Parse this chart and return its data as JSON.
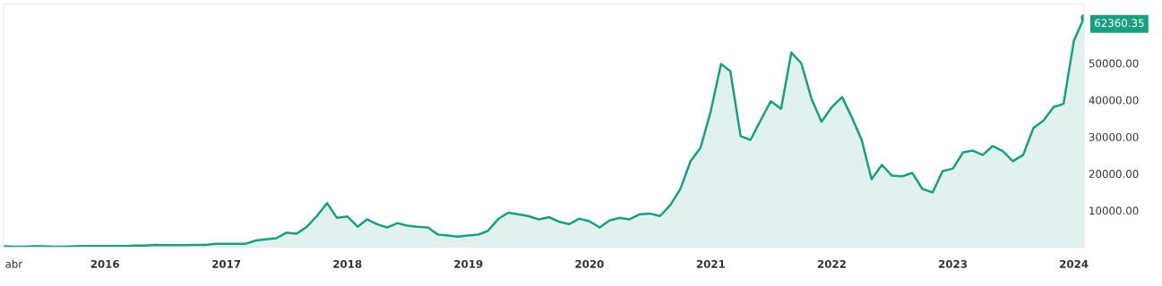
{
  "chart_data": {
    "type": "area",
    "color": "#1a9e7f",
    "x": [
      "2015-03",
      "2015-04",
      "2015-05",
      "2015-06",
      "2015-07",
      "2015-08",
      "2015-09",
      "2015-10",
      "2015-11",
      "2015-12",
      "2016-01",
      "2016-02",
      "2016-03",
      "2016-04",
      "2016-05",
      "2016-06",
      "2016-07",
      "2016-08",
      "2016-09",
      "2016-10",
      "2016-11",
      "2016-12",
      "2017-01",
      "2017-02",
      "2017-03",
      "2017-04",
      "2017-05",
      "2017-06",
      "2017-07",
      "2017-08",
      "2017-09",
      "2017-10",
      "2017-11",
      "2017-12",
      "2018-01",
      "2018-02",
      "2018-03",
      "2018-04",
      "2018-05",
      "2018-06",
      "2018-07",
      "2018-08",
      "2018-09",
      "2018-10",
      "2018-11",
      "2018-12",
      "2019-01",
      "2019-02",
      "2019-03",
      "2019-04",
      "2019-05",
      "2019-06",
      "2019-07",
      "2019-08",
      "2019-09",
      "2019-10",
      "2019-11",
      "2019-12",
      "2020-01",
      "2020-02",
      "2020-03",
      "2020-04",
      "2020-05",
      "2020-06",
      "2020-07",
      "2020-08",
      "2020-09",
      "2020-10",
      "2020-11",
      "2020-12",
      "2021-01",
      "2021-02",
      "2021-03",
      "2021-04",
      "2021-05",
      "2021-06",
      "2021-07",
      "2021-08",
      "2021-09",
      "2021-10",
      "2021-11",
      "2021-12",
      "2022-01",
      "2022-02",
      "2022-03",
      "2022-04",
      "2022-05",
      "2022-06",
      "2022-07",
      "2022-08",
      "2022-09",
      "2022-10",
      "2022-11",
      "2022-12",
      "2023-01",
      "2023-02",
      "2023-03",
      "2023-04",
      "2023-05",
      "2023-06",
      "2023-07",
      "2023-08",
      "2023-09",
      "2023-10",
      "2023-11",
      "2023-12",
      "2024-01",
      "2024-02"
    ],
    "values": [
      300,
      200,
      200,
      300,
      300,
      200,
      200,
      300,
      400,
      400,
      400,
      400,
      400,
      500,
      500,
      700,
      600,
      600,
      600,
      700,
      700,
      1000,
      1000,
      1000,
      1000,
      1900,
      2200,
      2500,
      4000,
      3700,
      5600,
      8500,
      12000,
      8000,
      8400,
      5600,
      7600,
      6300,
      5400,
      6600,
      5900,
      5600,
      5400,
      3500,
      3200,
      2900,
      3200,
      3500,
      4500,
      7700,
      9400,
      9000,
      8500,
      7600,
      8200,
      7000,
      6300,
      7800,
      7100,
      5400,
      7300,
      8000,
      7600,
      9000,
      9200,
      8500,
      11500,
      15800,
      23400,
      27000,
      37000,
      49800,
      47800,
      30200,
      29200,
      34600,
      39700,
      37600,
      52900,
      50000,
      40300,
      34100,
      38100,
      40800,
      35600,
      29200,
      18500,
      22400,
      19500,
      19300,
      20200,
      15900,
      14900,
      20700,
      21400,
      25800,
      26300,
      25100,
      27500,
      26100,
      23400,
      25100,
      32400,
      34400,
      38100,
      39000,
      56100,
      62360.35
    ],
    "value_labels": [
      null,
      null,
      null,
      null,
      null,
      null,
      null,
      null,
      null,
      null,
      null,
      null,
      null,
      null,
      null,
      null,
      null,
      null,
      null,
      null,
      null,
      null,
      null,
      null,
      null,
      null,
      null,
      null,
      null,
      null,
      null,
      null,
      null,
      null,
      null,
      null,
      null,
      null,
      null,
      null,
      null,
      null,
      null,
      null,
      null,
      null,
      null,
      null,
      null,
      null,
      null,
      null,
      null,
      null,
      null,
      null,
      null,
      null,
      null,
      null,
      null,
      null,
      null,
      null,
      null,
      null,
      null,
      null,
      null,
      null,
      null,
      null,
      null,
      null,
      null,
      null,
      null,
      null,
      null,
      null,
      null,
      null,
      null,
      null,
      null,
      null,
      null,
      null,
      null,
      null,
      null,
      null,
      null,
      null,
      null,
      null,
      null,
      null,
      null,
      null,
      null,
      null,
      null,
      null,
      null,
      null,
      null,
      "62360.35"
    ],
    "xlim": [
      "2015-03",
      "2024-02"
    ],
    "xticks": [
      {
        "value": "2015-04",
        "label": "abr"
      },
      {
        "value": "2016",
        "label": "2016"
      },
      {
        "value": "2017",
        "label": "2017"
      },
      {
        "value": "2018",
        "label": "2018"
      },
      {
        "value": "2019",
        "label": "2019"
      },
      {
        "value": "2020",
        "label": "2020"
      },
      {
        "value": "2021",
        "label": "2021"
      },
      {
        "value": "2022",
        "label": "2022"
      },
      {
        "value": "2023",
        "label": "2023"
      },
      {
        "value": "2024",
        "label": "2024"
      }
    ],
    "ylim": [
      0,
      66000
    ],
    "yticks": [
      {
        "value": 10000,
        "label": "10000.00"
      },
      {
        "value": 20000,
        "label": "20000.00"
      },
      {
        "value": 30000,
        "label": "30000.00"
      },
      {
        "value": 40000,
        "label": "40000.00"
      },
      {
        "value": 50000,
        "label": "50000.00"
      }
    ],
    "grid": false,
    "legend": false
  }
}
